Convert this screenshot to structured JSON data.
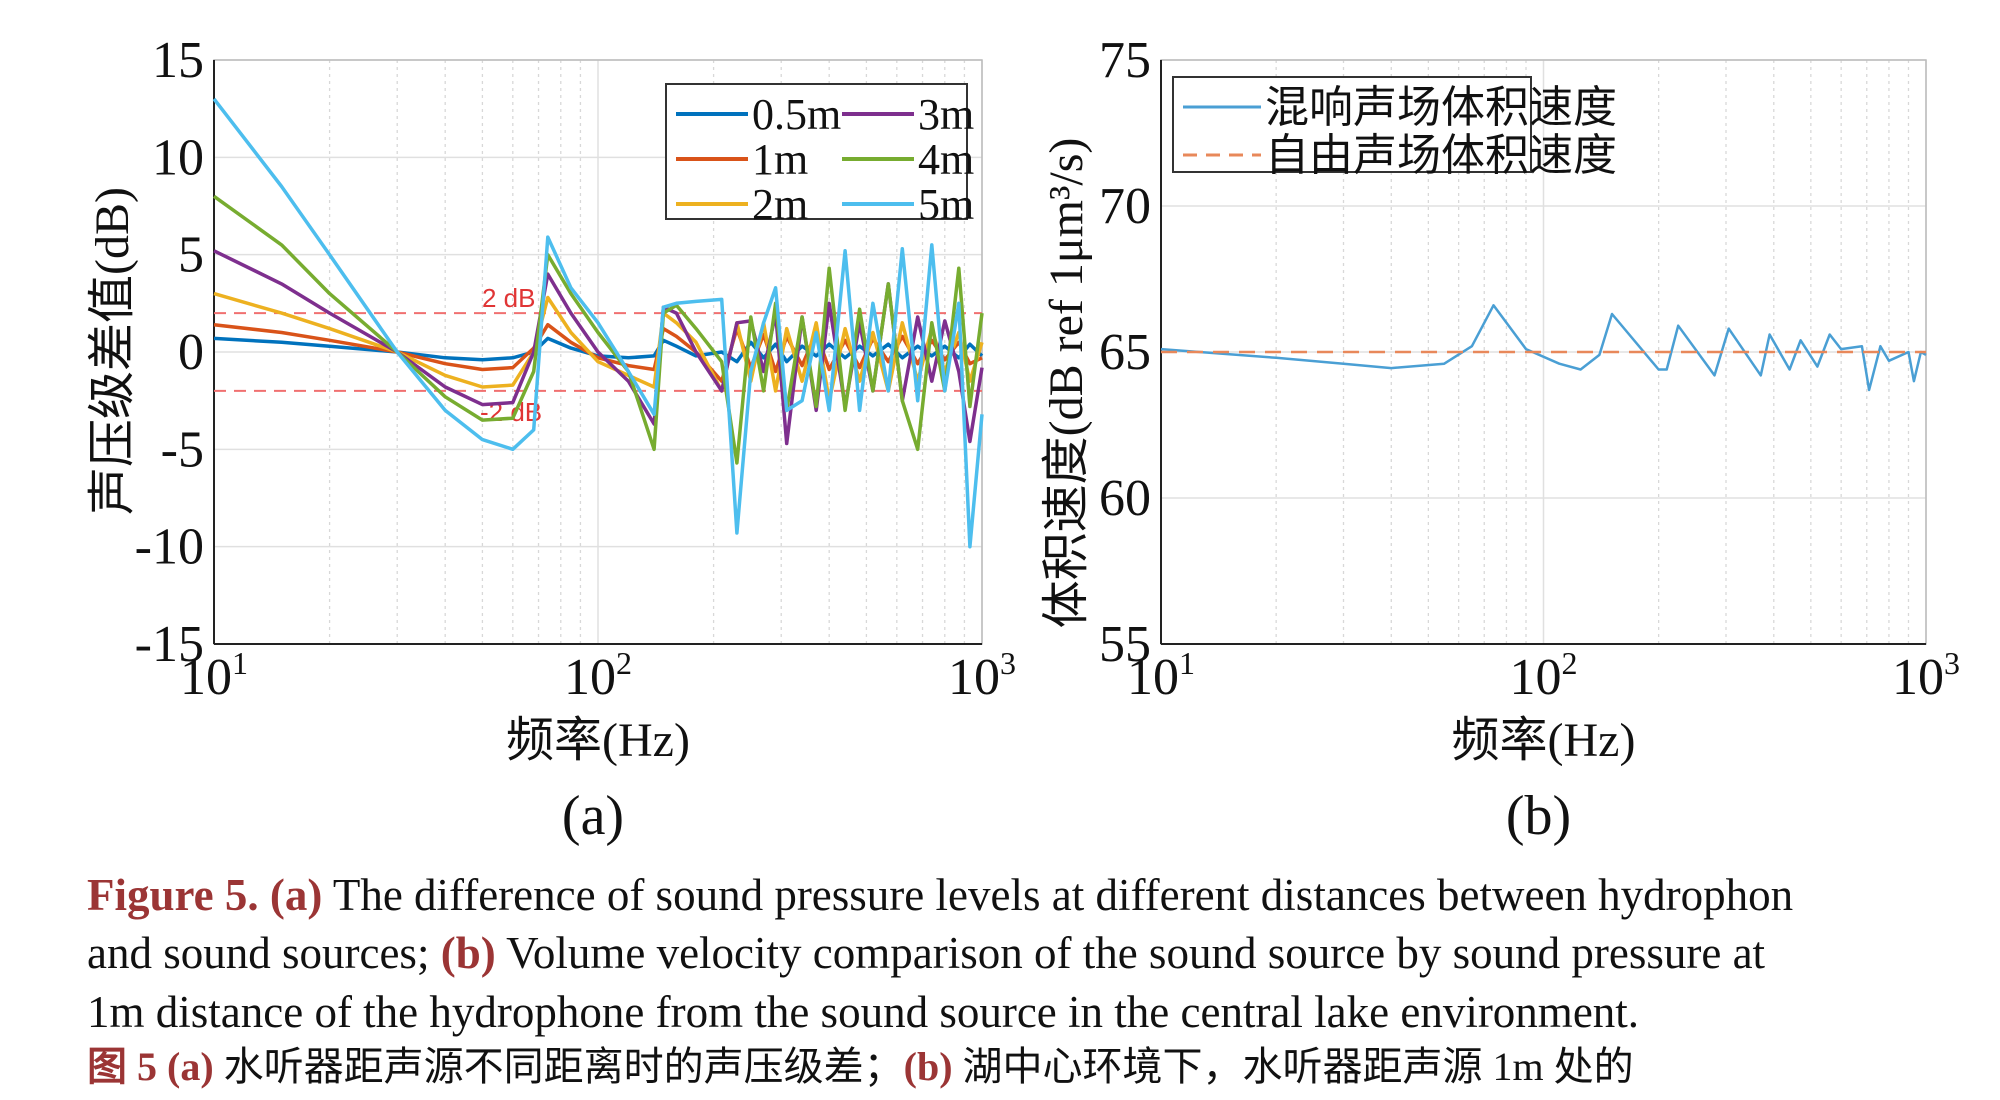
{
  "chart_data": [
    {
      "type": "line",
      "panel_label": "(a)",
      "xlabel": "频率(Hz)",
      "ylabel": "声压级差值(dB)",
      "xscale": "log",
      "xlim": [
        10,
        1000
      ],
      "ylim": [
        -15,
        15
      ],
      "yticks": [
        "15",
        "10",
        "5",
        "0",
        "-5",
        "-10",
        "-15"
      ],
      "ytick_values": [
        15,
        10,
        5,
        0,
        -5,
        -10,
        -15
      ],
      "xticks": [
        {
          "base": "10",
          "exp": "1",
          "value": 10
        },
        {
          "base": "10",
          "exp": "2",
          "value": 100
        },
        {
          "base": "10",
          "exp": "3",
          "value": 1000
        }
      ],
      "grid": true,
      "legend_position": "top-right",
      "reference_lines": [
        {
          "value": 2,
          "label": "2 dB"
        },
        {
          "value": -2,
          "label": "-2 dB"
        }
      ],
      "x": [
        10,
        15,
        20,
        30,
        40,
        50,
        60,
        68,
        74,
        85,
        100,
        120,
        140,
        148,
        160,
        180,
        210,
        230,
        250,
        270,
        290,
        310,
        340,
        370,
        400,
        440,
        480,
        520,
        570,
        620,
        680,
        740,
        800,
        870,
        930,
        1000
      ],
      "series": [
        {
          "name": "0.5m",
          "color": "#0072BD",
          "values": [
            0.7,
            0.5,
            0.3,
            0,
            -0.3,
            -0.4,
            -0.3,
            0,
            0.7,
            0.2,
            -0.2,
            -0.3,
            -0.2,
            0.6,
            0.3,
            -0.2,
            0,
            -0.5,
            0.5,
            -0.3,
            0.4,
            -0.5,
            0.3,
            -0.2,
            0.4,
            -0.3,
            0.3,
            -0.2,
            0.4,
            -0.3,
            0.3,
            -0.2,
            0.3,
            -0.3,
            0.4,
            -0.2
          ]
        },
        {
          "name": "1m",
          "color": "#D95319",
          "values": [
            1.4,
            1.0,
            0.6,
            0,
            -0.6,
            -0.9,
            -0.8,
            0.2,
            1.4,
            0.5,
            -0.3,
            -0.7,
            -0.9,
            1.2,
            0.8,
            0,
            -1.5,
            1.2,
            -0.8,
            0.9,
            -1,
            0.8,
            -0.7,
            1,
            -0.9,
            0.6,
            -0.8,
            0.7,
            -0.5,
            0.8,
            -0.6,
            0.6,
            -0.4,
            0.5,
            -0.6,
            -0.3
          ]
        },
        {
          "name": "2m",
          "color": "#EDB120",
          "values": [
            3,
            2,
            1.2,
            0,
            -1.2,
            -1.8,
            -1.7,
            0,
            2.8,
            1,
            -0.5,
            -1.2,
            -1.8,
            2,
            1.5,
            0.5,
            -2,
            1.5,
            -1.5,
            1.5,
            -2,
            1.2,
            -1.5,
            1.5,
            -2.5,
            1.2,
            -1.5,
            1,
            -2,
            1.5,
            -1.5,
            1.2,
            -1,
            1,
            -1.5,
            0.5
          ]
        },
        {
          "name": "3m",
          "color": "#7E2F8E",
          "values": [
            5.2,
            3.5,
            2,
            0,
            -1.8,
            -2.7,
            -2.6,
            0,
            4,
            2,
            0,
            -1.5,
            -3.7,
            2.3,
            2,
            0,
            -2,
            1.5,
            1.6,
            -1,
            2,
            -4.7,
            1.8,
            -3,
            2.5,
            -2.8,
            1.5,
            -2,
            3.5,
            -2.5,
            1.8,
            -1.5,
            1.6,
            -1,
            -4.6,
            -0.8
          ]
        },
        {
          "name": "4m",
          "color": "#77AC30",
          "values": [
            8,
            5.5,
            3,
            0,
            -2.3,
            -3.5,
            -3.4,
            -1,
            5,
            3,
            1,
            -1,
            -5,
            2,
            2.4,
            1.2,
            -0.5,
            -5.7,
            1.8,
            -2,
            2.5,
            -3,
            1.8,
            -2.8,
            4.3,
            -3,
            2.2,
            -2,
            3.5,
            -2.5,
            -5,
            1.5,
            -2,
            4.3,
            -2.8,
            2
          ]
        },
        {
          "name": "5m",
          "color": "#4DBEEE",
          "values": [
            13,
            8.5,
            5,
            0,
            -3,
            -4.5,
            -5,
            -4,
            5.9,
            3.3,
            1.5,
            -1,
            -3.2,
            2.3,
            2.5,
            2.6,
            2.7,
            -9.3,
            -1,
            1.5,
            3.3,
            -3,
            -2.5,
            1,
            -3,
            5.2,
            -3,
            2.5,
            -2,
            5.3,
            -2.5,
            5.5,
            -2,
            2.5,
            -10,
            -3.2
          ]
        }
      ]
    },
    {
      "type": "line",
      "panel_label": "(b)",
      "xlabel": "频率(Hz)",
      "ylabel": "体积速度(dB ref 1μm³/s)",
      "xscale": "log",
      "xlim": [
        10,
        1000
      ],
      "ylim": [
        55,
        75
      ],
      "yticks": [
        "75",
        "70",
        "65",
        "60",
        "55"
      ],
      "ytick_values": [
        75,
        70,
        65,
        60,
        55
      ],
      "xticks": [
        {
          "base": "10",
          "exp": "1",
          "value": 10
        },
        {
          "base": "10",
          "exp": "2",
          "value": 100
        },
        {
          "base": "10",
          "exp": "3",
          "value": 1000
        }
      ],
      "grid": true,
      "legend_position": "top-left",
      "series": [
        {
          "name": "混响声场体积速度",
          "color": "#4a9fd4",
          "style": "solid",
          "x": [
            10,
            20,
            30,
            40,
            55,
            65,
            74,
            90,
            110,
            125,
            140,
            151,
            200,
            210,
            225,
            280,
            305,
            370,
            390,
            440,
            470,
            520,
            560,
            600,
            680,
            710,
            760,
            800,
            900,
            930,
            970,
            1000
          ],
          "values": [
            65.1,
            64.8,
            64.6,
            64.45,
            64.6,
            65.2,
            66.6,
            65.1,
            64.6,
            64.4,
            64.9,
            66.3,
            64.4,
            64.4,
            65.9,
            64.2,
            65.8,
            64.2,
            65.6,
            64.4,
            65.4,
            64.5,
            65.6,
            65.1,
            65.2,
            63.7,
            65.2,
            64.7,
            65,
            64.0,
            65,
            64.9
          ]
        },
        {
          "name": "自由声场体积速度",
          "color": "#e8885a",
          "style": "dashed",
          "x": [
            10,
            1000
          ],
          "values": [
            65,
            65
          ]
        }
      ]
    }
  ],
  "caption": {
    "en_label": "Figure 5.",
    "a_label": "(a)",
    "b_label": "(b)",
    "line1_text": " The difference of sound pressure levels at different distances between hydrophon",
    "line2_pre": "and sound sources; ",
    "line2_text": " Volume velocity comparison of the sound source by sound pressure at",
    "line3_text": "1m distance of the hydrophone from the sound source in the central lake environment.",
    "zh_label": "图  5",
    "zh_a_text": "  水听器距声源不同距离时的声压级差；",
    "zh_b_text": "  湖中心环境下，水听器距声源 1m 处的"
  }
}
